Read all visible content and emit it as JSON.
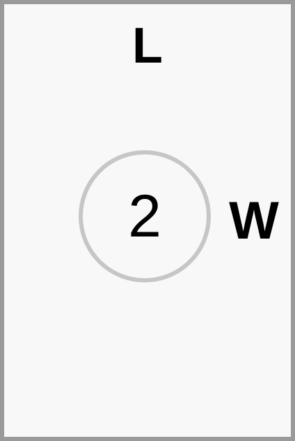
{
  "top_label": "L",
  "center_value": "2",
  "right_label": "W",
  "colors": {
    "frame_border": "#9a9a9a",
    "background": "#f8f8f8",
    "circle_ring": "#c6c6c6",
    "text": "#000000"
  }
}
